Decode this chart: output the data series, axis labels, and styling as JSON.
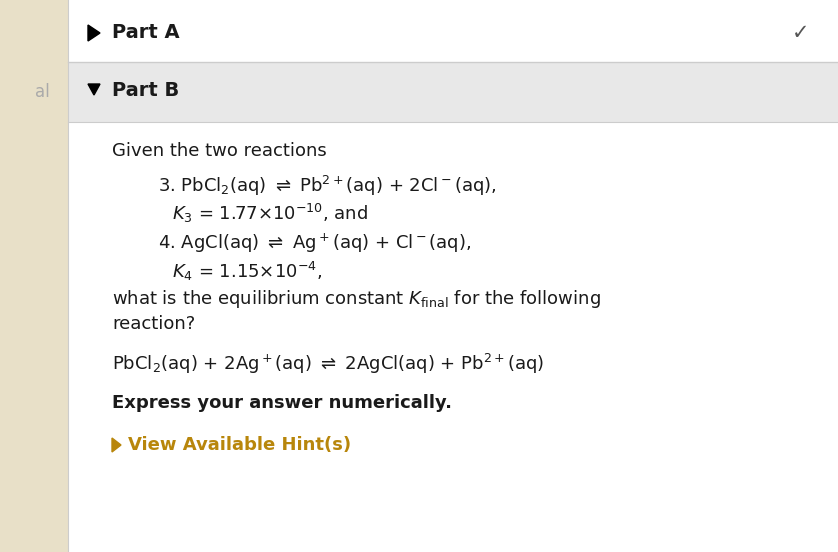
{
  "bg_white": "#ffffff",
  "bg_partB_header": "#e8e8e8",
  "text_color": "#1a1a1a",
  "hint_color": "#b8860b",
  "left_strip_color": "#e8e0c8",
  "part_a_text": "Part A",
  "part_b_text": "Part B",
  "given_text": "Given the two reactions",
  "rxn3_line1": "3. PbCl$_2$(aq) $\\rightleftharpoons$ Pb$^{2+}$(aq) + 2Cl$^-$(aq),",
  "rxn3_line2": "$K_3$ = 1.77×10$^{-10}$, and",
  "rxn4_line1": "4. AgCl(aq) $\\rightleftharpoons$ Ag$^+$(aq) + Cl$^-$(aq),",
  "rxn4_line2": "$K_4$ = 1.15×10$^{-4}$,",
  "question_line1": "what is the equilibrium constant $K_{\\mathrm{final}}$ for the following",
  "question_line2": "reaction?",
  "final_rxn": "PbCl$_2$(aq) + 2Ag$^+$(aq) $\\rightleftharpoons$ 2AgCl(aq) + Pb$^{2+}$(aq)",
  "express_text": "Express your answer numerically.",
  "hint_text": "View Available Hint(s)",
  "left_margin_text": "al"
}
